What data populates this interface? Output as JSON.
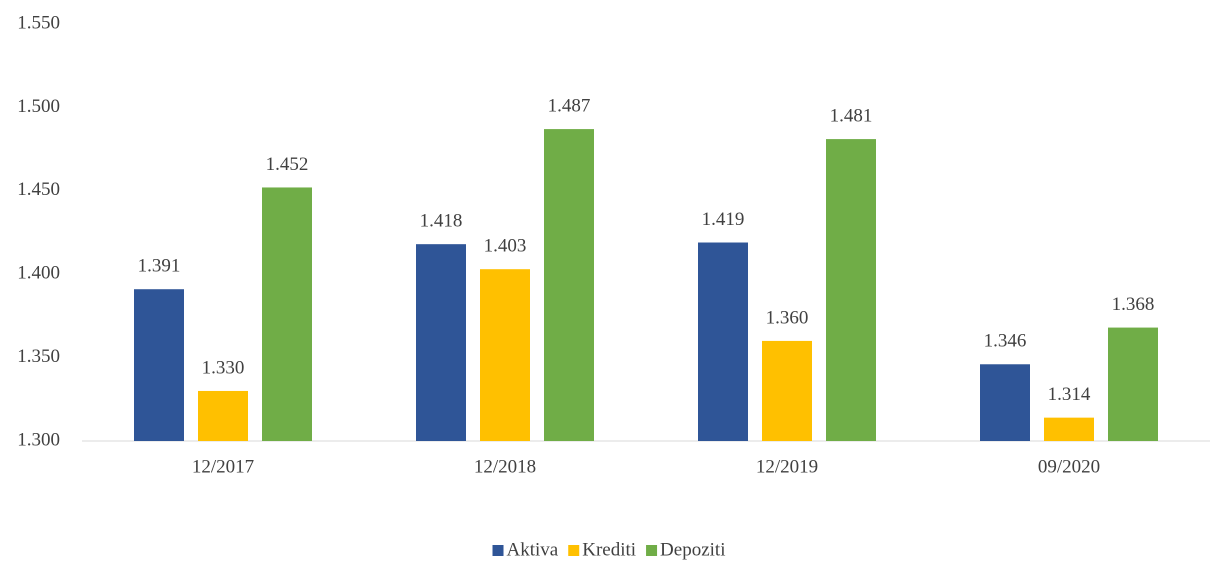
{
  "chart_data": {
    "type": "bar",
    "categories": [
      "12/2017",
      "12/2018",
      "12/2019",
      "09/2020"
    ],
    "series": [
      {
        "name": "Aktiva",
        "color": "#2f5597",
        "values": [
          1391,
          1418,
          1419,
          1346
        ],
        "value_labels": [
          "1.391",
          "1.418",
          "1.419",
          "1.346"
        ]
      },
      {
        "name": "Krediti",
        "color": "#ffc000",
        "values": [
          1330,
          1403,
          1360,
          1314
        ],
        "value_labels": [
          "1.330",
          "1.403",
          "1.360",
          "1.314"
        ]
      },
      {
        "name": "Depoziti",
        "color": "#70ad47",
        "values": [
          1452,
          1487,
          1481,
          1368
        ],
        "value_labels": [
          "1.452",
          "1.487",
          "1.481",
          "1.368"
        ]
      }
    ],
    "ylim": [
      1300,
      1550
    ],
    "yticks": [
      {
        "value": 1300,
        "label": "1.300"
      },
      {
        "value": 1350,
        "label": "1.350"
      },
      {
        "value": 1400,
        "label": "1.400"
      },
      {
        "value": 1450,
        "label": "1.450"
      },
      {
        "value": 1500,
        "label": "1.500"
      },
      {
        "value": 1550,
        "label": "1.550"
      }
    ],
    "grid": false,
    "legend": "bottom"
  }
}
